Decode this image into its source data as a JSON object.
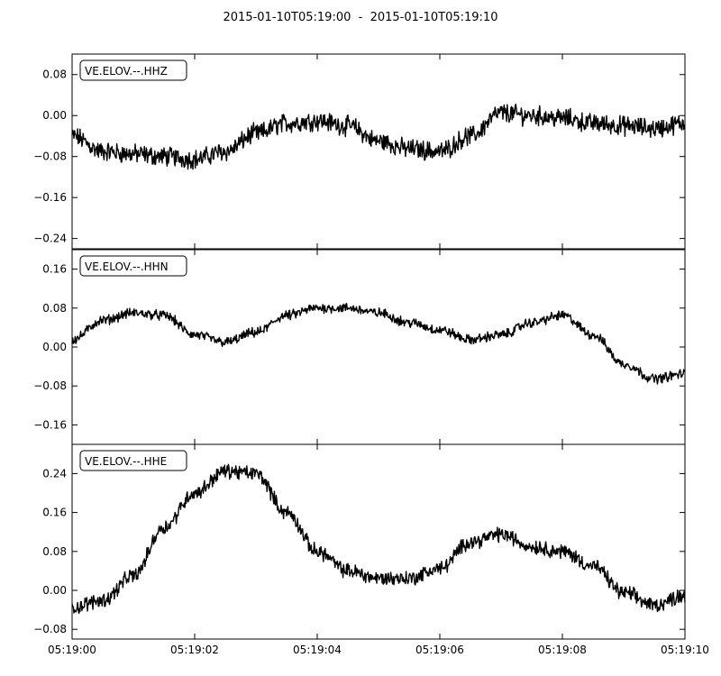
{
  "chart_data": {
    "type": "line",
    "title": "2015-01-10T05:19:00  -  2015-01-10T05:19:10",
    "x_ticks": [
      "05:19:00",
      "05:19:02",
      "05:19:04",
      "05:19:06",
      "05:19:08",
      "05:19:10"
    ],
    "xlim": [
      "05:19:00",
      "05:19:10"
    ],
    "grid": false,
    "panels": [
      {
        "name": "VE.ELOV.--.HHZ",
        "ylim": [
          -0.26,
          0.12
        ],
        "y_ticks": [
          0.08,
          0.0,
          -0.08,
          -0.16,
          -0.24
        ],
        "y_tick_labels": [
          "0.08",
          "0.00",
          "−0.08",
          "−0.16",
          "−0.24"
        ],
        "x": [
          0,
          0.5,
          1.0,
          1.5,
          2.0,
          2.5,
          3.0,
          3.5,
          4.0,
          4.5,
          5.0,
          5.5,
          6.0,
          6.5,
          7.0,
          7.5,
          8.0,
          8.5,
          9.0,
          9.5,
          10.0
        ],
        "values": [
          -0.04,
          -0.07,
          -0.075,
          -0.08,
          -0.085,
          -0.07,
          -0.035,
          -0.015,
          -0.01,
          -0.02,
          -0.05,
          -0.065,
          -0.07,
          -0.04,
          0.005,
          0.0,
          -0.005,
          -0.015,
          -0.02,
          -0.025,
          -0.015
        ],
        "noise": 0.015
      },
      {
        "name": "VE.ELOV.--.HHN",
        "ylim": [
          -0.2,
          0.2
        ],
        "y_ticks": [
          0.16,
          0.08,
          0.0,
          -0.08,
          -0.16
        ],
        "y_tick_labels": [
          "0.16",
          "0.08",
          "0.00",
          "−0.08",
          "−0.16"
        ],
        "x": [
          0,
          0.5,
          1.0,
          1.5,
          2.0,
          2.5,
          3.0,
          3.5,
          4.0,
          4.5,
          5.0,
          5.5,
          6.0,
          6.5,
          7.0,
          7.5,
          8.0,
          8.5,
          9.0,
          9.5,
          10.0
        ],
        "values": [
          0.015,
          0.055,
          0.07,
          0.065,
          0.025,
          0.01,
          0.03,
          0.065,
          0.08,
          0.08,
          0.07,
          0.05,
          0.035,
          0.015,
          0.025,
          0.05,
          0.065,
          0.025,
          -0.035,
          -0.065,
          -0.055
        ],
        "noise": 0.008
      },
      {
        "name": "VE.ELOV.--.HHE",
        "ylim": [
          -0.1,
          0.3
        ],
        "y_ticks": [
          0.24,
          0.16,
          0.08,
          0.0,
          -0.08
        ],
        "y_tick_labels": [
          "0.24",
          "0.16",
          "0.08",
          "0.00",
          "−0.08"
        ],
        "x": [
          0,
          0.5,
          1.0,
          1.5,
          2.0,
          2.5,
          3.0,
          3.5,
          4.0,
          4.5,
          5.0,
          5.5,
          6.0,
          6.5,
          7.0,
          7.5,
          8.0,
          8.5,
          9.0,
          9.5,
          10.0
        ],
        "values": [
          -0.035,
          -0.02,
          0.03,
          0.13,
          0.2,
          0.245,
          0.24,
          0.16,
          0.08,
          0.04,
          0.025,
          0.025,
          0.045,
          0.1,
          0.115,
          0.09,
          0.08,
          0.05,
          -0.005,
          -0.03,
          -0.01
        ],
        "noise": 0.012
      }
    ]
  }
}
